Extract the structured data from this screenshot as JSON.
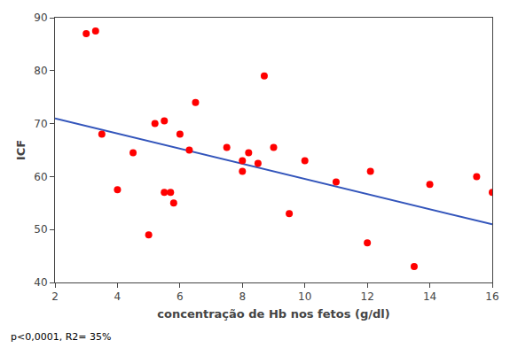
{
  "chart_data": {
    "type": "scatter",
    "xlabel": "concentração de Hb nos fetos (g/dl)",
    "ylabel": "ICF",
    "annotation": "p<0,0001, R2= 35%",
    "xlim": [
      2,
      16
    ],
    "ylim": [
      40,
      90
    ],
    "xticks": [
      2,
      4,
      6,
      8,
      10,
      12,
      14,
      16
    ],
    "yticks": [
      40,
      50,
      60,
      70,
      80,
      90
    ],
    "grid": false,
    "series": [
      {
        "type": "scatter",
        "color": "#ff0000",
        "x": [
          3.0,
          3.3,
          3.5,
          4.0,
          4.5,
          5.0,
          5.2,
          5.5,
          5.5,
          5.7,
          5.8,
          6.0,
          6.3,
          6.5,
          7.5,
          8.0,
          8.0,
          8.2,
          8.5,
          8.7,
          9.0,
          9.5,
          10.0,
          11.0,
          12.0,
          12.1,
          13.5,
          14.0,
          15.5,
          16.0
        ],
        "values": [
          87.0,
          87.5,
          68.0,
          57.5,
          64.5,
          49.0,
          70.0,
          70.5,
          57.0,
          57.0,
          55.0,
          68.0,
          65.0,
          74.0,
          65.5,
          63.0,
          61.0,
          64.5,
          62.5,
          79.0,
          65.5,
          53.0,
          63.0,
          59.0,
          47.5,
          61.0,
          43.0,
          58.5,
          60.0,
          57.0
        ]
      },
      {
        "type": "line",
        "color": "#3355bb",
        "x": [
          2,
          16
        ],
        "values": [
          71.0,
          50.98
        ]
      }
    ]
  }
}
